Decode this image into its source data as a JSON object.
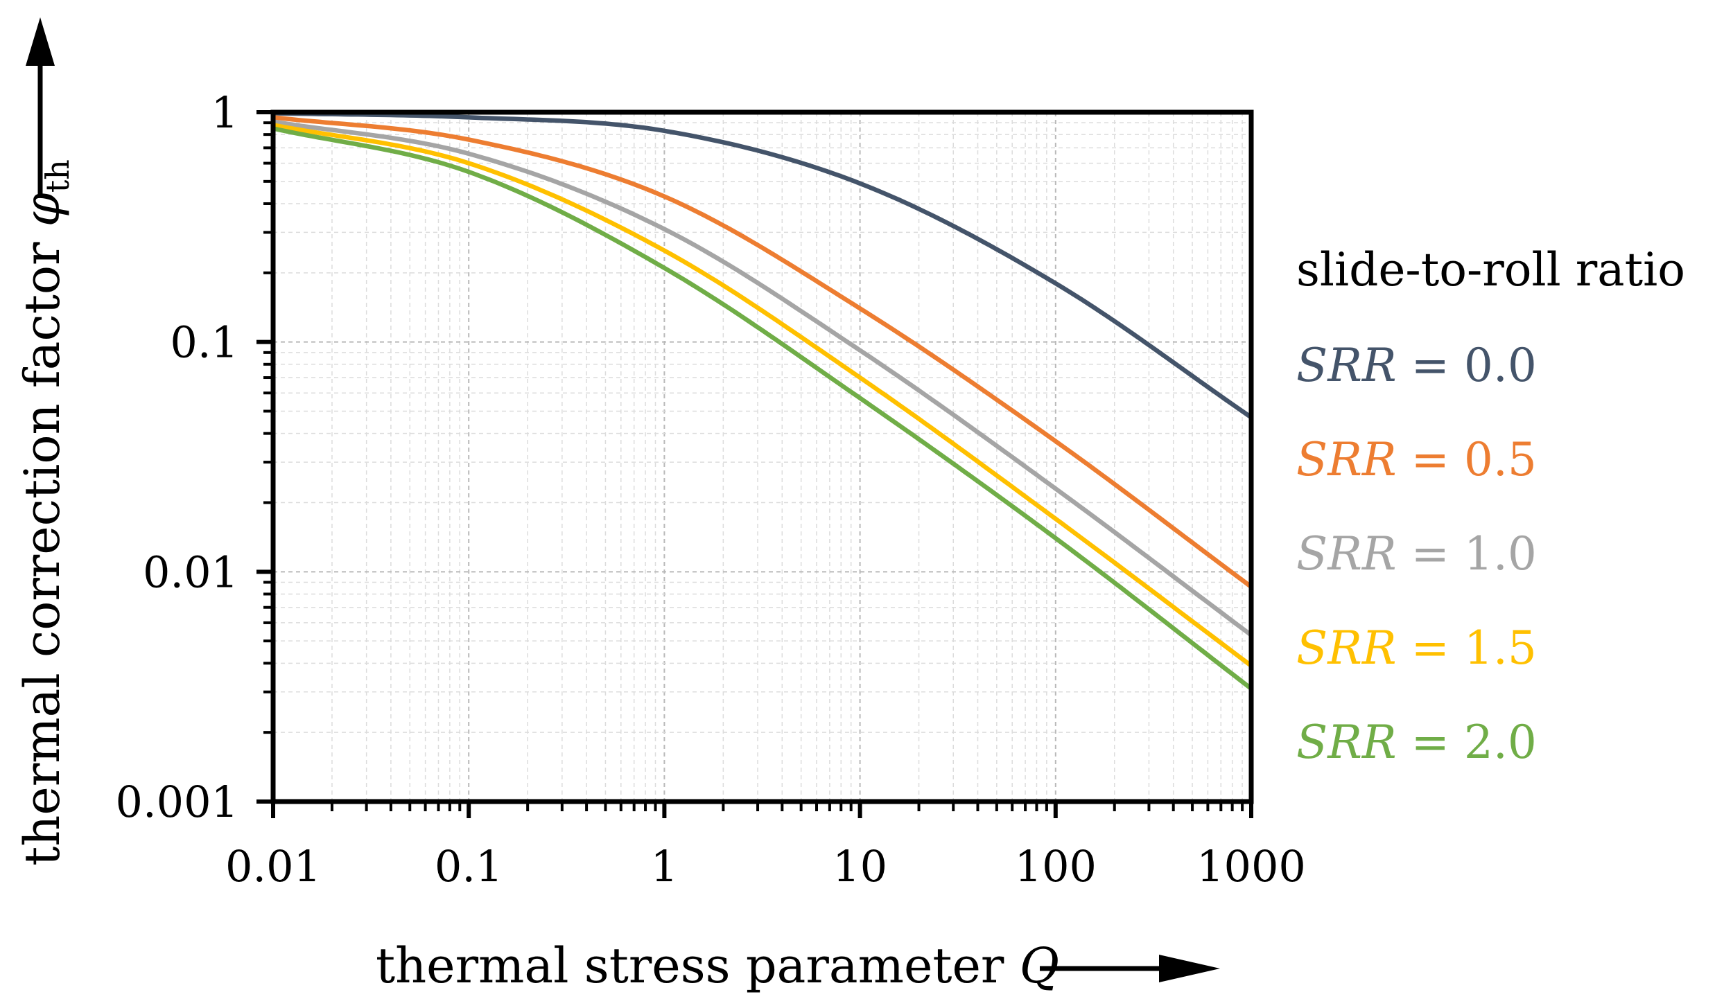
{
  "chart_data": {
    "type": "line",
    "x_scale": "log",
    "y_scale": "log",
    "xlim": [
      0.01,
      1000
    ],
    "ylim": [
      0.001,
      1
    ],
    "grid": true,
    "x_ticks": [
      "0.01",
      "0.1",
      "1",
      "10",
      "100",
      "1000"
    ],
    "y_ticks": [
      "1",
      "0.1",
      "0.01",
      "0.001"
    ],
    "xlabel": "thermal stress parameter",
    "xlabel_symbol": "Q",
    "ylabel": "thermal correction factor",
    "ylabel_symbol": "φ",
    "ylabel_subscript": "th",
    "legend_title": "slide-to-roll ratio",
    "legend_position": "right",
    "x": [
      0.01,
      0.1,
      1,
      10,
      100,
      1000
    ],
    "series": [
      {
        "name": "SRR = 0.0",
        "symbol": "SRR",
        "eq": "= 0.0",
        "color": "#44546a",
        "values": [
          0.99,
          0.95,
          0.83,
          0.49,
          0.18,
          0.047
        ]
      },
      {
        "name": "SRR = 0.5",
        "symbol": "SRR",
        "eq": "= 0.5",
        "color": "#ed7d31",
        "values": [
          0.95,
          0.76,
          0.43,
          0.14,
          0.037,
          0.0086
        ]
      },
      {
        "name": "SRR = 1.0",
        "symbol": "SRR",
        "eq": "= 1.0",
        "color": "#a5a5a5",
        "values": [
          0.91,
          0.66,
          0.31,
          0.092,
          0.023,
          0.0053
        ]
      },
      {
        "name": "SRR = 1.5",
        "symbol": "SRR",
        "eq": "= 1.5",
        "color": "#ffc000",
        "values": [
          0.88,
          0.6,
          0.25,
          0.07,
          0.017,
          0.0039
        ]
      },
      {
        "name": "SRR = 2.0",
        "symbol": "SRR",
        "eq": "= 2.0",
        "color": "#70ad47",
        "values": [
          0.85,
          0.55,
          0.21,
          0.057,
          0.014,
          0.0031
        ]
      }
    ]
  }
}
